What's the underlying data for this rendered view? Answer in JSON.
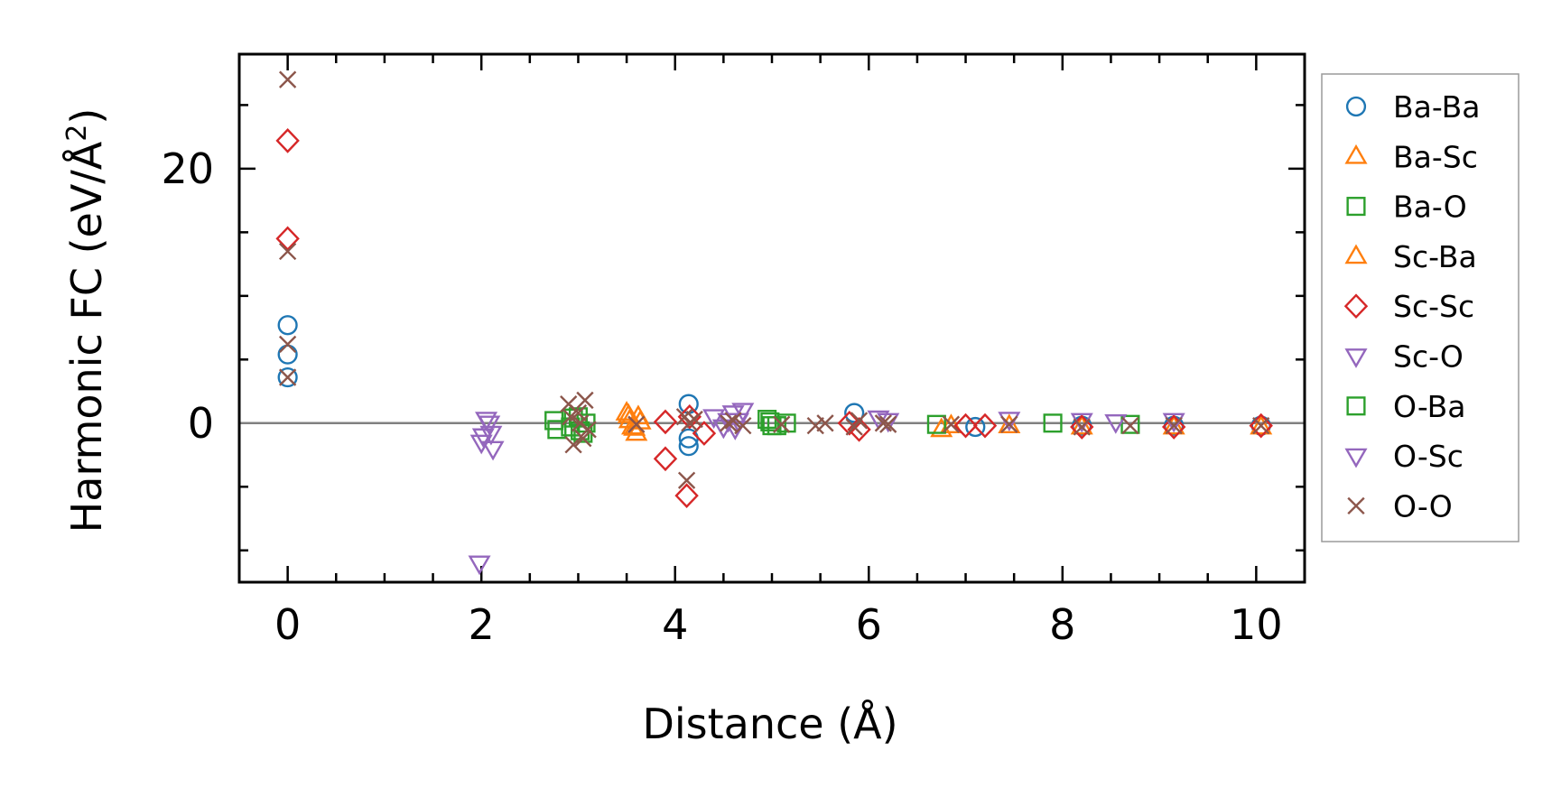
{
  "chart_data": {
    "type": "scatter",
    "title": "",
    "xlabel": "Distance (Å)",
    "ylabel_main": "Harmonic FC (eV/Å",
    "ylabel_sup": "2",
    "ylabel_close": ")",
    "xlim": [
      -0.5,
      10.5
    ],
    "ylim": [
      -12.5,
      29
    ],
    "xticks": [
      0,
      2,
      4,
      6,
      8,
      10
    ],
    "xtick_labels": [
      "0",
      "2",
      "4",
      "6",
      "8",
      "10"
    ],
    "yticks": [
      0,
      20
    ],
    "ytick_labels": [
      "0",
      "20"
    ],
    "x_minor_step": 0.5,
    "y_minor_step": 5,
    "hline": 0,
    "legend_position": "outside-right",
    "series": [
      {
        "name": "Ba-Ba",
        "marker": "circle",
        "color": "#1f77b4",
        "x": [
          0,
          0,
          0,
          4.14,
          4.14,
          4.14,
          5.85,
          7.1,
          8.2,
          9.15,
          10.05
        ],
        "y": [
          7.7,
          5.4,
          3.6,
          1.5,
          -1.2,
          -1.8,
          0.8,
          -0.3,
          -0.2,
          -0.2,
          -0.2
        ]
      },
      {
        "name": "Ba-Sc",
        "marker": "triangle-up",
        "color": "#ff7f0e",
        "x": [
          3.5,
          3.53,
          3.56,
          3.6,
          3.62,
          6.75,
          6.85,
          7.45,
          8.2,
          9.15,
          10.05
        ],
        "y": [
          0.8,
          0.2,
          -0.3,
          -0.8,
          0.5,
          -0.5,
          -0.2,
          -0.2,
          -0.3,
          -0.3,
          -0.3
        ]
      },
      {
        "name": "Ba-O",
        "marker": "square",
        "color": "#2ca02c",
        "x": [
          2.75,
          2.78,
          2.92,
          3.0,
          3.05,
          3.08,
          4.95,
          5.0,
          5.15,
          6.7,
          7.9,
          8.7
        ],
        "y": [
          0.2,
          -0.5,
          -0.3,
          0.5,
          -0.8,
          0.0,
          0.3,
          -0.2,
          0.0,
          -0.1,
          0.0,
          -0.1
        ]
      },
      {
        "name": "Sc-Ba",
        "marker": "triangle-up",
        "color": "#ff7f0e",
        "x": [
          3.52,
          3.58,
          3.64
        ],
        "y": [
          0.6,
          -0.4,
          0.1
        ]
      },
      {
        "name": "Sc-Sc",
        "marker": "diamond",
        "color": "#d62728",
        "x": [
          0,
          0,
          3.9,
          3.9,
          4.12,
          4.15,
          4.3,
          5.8,
          5.9,
          7.0,
          7.2,
          8.2,
          9.15,
          10.05
        ],
        "y": [
          22.2,
          14.5,
          0.1,
          -2.8,
          -5.7,
          0.5,
          -0.8,
          0.0,
          -0.5,
          -0.2,
          -0.2,
          -0.3,
          -0.3,
          -0.2
        ]
      },
      {
        "name": "Sc-O",
        "marker": "triangle-down",
        "color": "#9467bd",
        "x": [
          1.98,
          2.0,
          2.05,
          2.1,
          2.12,
          4.4,
          4.5,
          4.6,
          4.65,
          4.7,
          6.1,
          6.2,
          7.45,
          8.2,
          8.55,
          9.15
        ],
        "y": [
          -11.0,
          -1.5,
          0.3,
          -0.8,
          -2.0,
          0.5,
          -0.3,
          0.8,
          0.2,
          1.0,
          0.4,
          0.2,
          0.3,
          0.2,
          0.1,
          0.2
        ]
      },
      {
        "name": "O-Ba",
        "marker": "square",
        "color": "#2ca02c",
        "x": [
          2.95,
          3.02,
          4.98,
          5.05
        ],
        "y": [
          0.4,
          -0.6,
          0.1,
          -0.2
        ]
      },
      {
        "name": "O-Sc",
        "marker": "triangle-down",
        "color": "#9467bd",
        "x": [
          2.02,
          2.08,
          4.55,
          4.62
        ],
        "y": [
          -1.0,
          0.0,
          0.2,
          -0.4
        ]
      },
      {
        "name": "O-O",
        "marker": "x",
        "color": "#8c564b",
        "x": [
          0,
          0,
          0,
          0,
          2.9,
          2.92,
          2.95,
          3.0,
          3.02,
          3.05,
          3.07,
          3.1,
          3.6,
          4.1,
          4.12,
          4.15,
          4.2,
          4.55,
          4.6,
          4.7,
          5.1,
          5.45,
          5.55,
          5.85,
          5.9,
          6.15,
          6.2,
          6.85,
          7.45,
          8.2,
          8.7,
          9.15,
          10.05
        ],
        "y": [
          27.0,
          13.5,
          6.2,
          3.6,
          1.5,
          0.5,
          -1.7,
          0.8,
          0.0,
          -1.2,
          1.8,
          -0.5,
          -0.1,
          0.5,
          -4.5,
          0.0,
          0.3,
          0.0,
          0.2,
          -0.2,
          -0.1,
          -0.2,
          0.0,
          -0.3,
          0.2,
          0.0,
          -0.1,
          -0.1,
          -0.1,
          -0.3,
          -0.2,
          -0.2,
          -0.2
        ]
      }
    ]
  }
}
